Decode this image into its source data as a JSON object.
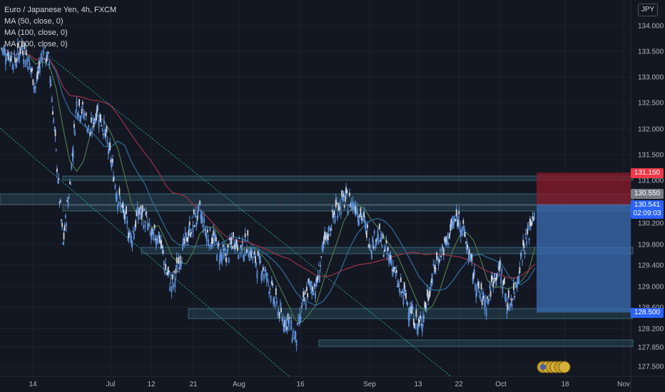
{
  "legend": {
    "symbol": "Euro / Japanese Yen, 4h, FXCM",
    "ma50": "MA (50, close, 0)",
    "ma100": "MA (100, close, 0)",
    "ma200": "MA (200, close, 0)"
  },
  "currency_button": "JPY",
  "price_tags": {
    "stop": "131.150",
    "last": "130.550",
    "current": "130.541",
    "countdown": "02:09:03",
    "target": "128.500"
  },
  "colors": {
    "background": "#131722",
    "candles": "#5b8fd6",
    "ma50": "#4b7a4b",
    "ma100": "#2f6f9f",
    "ma200": "#9c3344",
    "trendline": "#26a69a",
    "zone": "#4a8fa0",
    "stop_zone": "#8b1a2a",
    "target_zone": "#3b6db5"
  },
  "chart_data": {
    "type": "line",
    "y_ticks": [
      "134.000",
      "133.500",
      "133.000",
      "132.500",
      "132.000",
      "131.500",
      "131.000",
      "130.200",
      "129.800",
      "129.400",
      "129.000",
      "128.600",
      "128.200",
      "127.850",
      "127.500"
    ],
    "x_ticks": [
      "14",
      "Jul",
      "12",
      "21",
      "Aug",
      "16",
      "Sep",
      "13",
      "22",
      "Oct",
      "18",
      "Nov"
    ],
    "ylim": [
      127.4,
      134.2
    ],
    "series": [
      {
        "values": [
          133.55,
          133.45,
          133.3,
          133.6,
          133.3,
          132.8,
          133.5,
          133.3,
          131.5,
          129.8,
          130.9,
          132.5,
          132.3,
          131.9,
          132.4,
          132.0,
          131.4,
          130.7,
          130.3,
          129.9,
          130.4,
          130.3,
          129.9,
          130.0,
          129.3,
          129.0,
          129.5,
          129.9,
          130.2,
          130.4,
          130.0,
          129.9,
          129.6,
          129.6,
          129.9,
          129.7,
          129.8,
          129.5,
          129.4,
          129.1,
          128.7,
          128.4,
          128.3,
          128.0,
          128.6,
          129.0,
          129.0,
          129.7,
          130.1,
          130.5,
          130.6,
          130.6,
          130.5,
          130.2,
          129.8,
          130.0,
          129.7,
          129.5,
          129.0,
          128.8,
          128.5,
          128.2,
          128.6,
          129.2,
          129.6,
          129.8,
          130.2,
          130.3,
          129.8,
          129.2,
          128.8,
          128.7,
          129.2,
          129.3,
          128.6,
          128.9,
          129.6,
          130.0,
          130.5
        ]
      }
    ],
    "levels": [
      131.15,
      130.55,
      130.541,
      128.5
    ]
  }
}
